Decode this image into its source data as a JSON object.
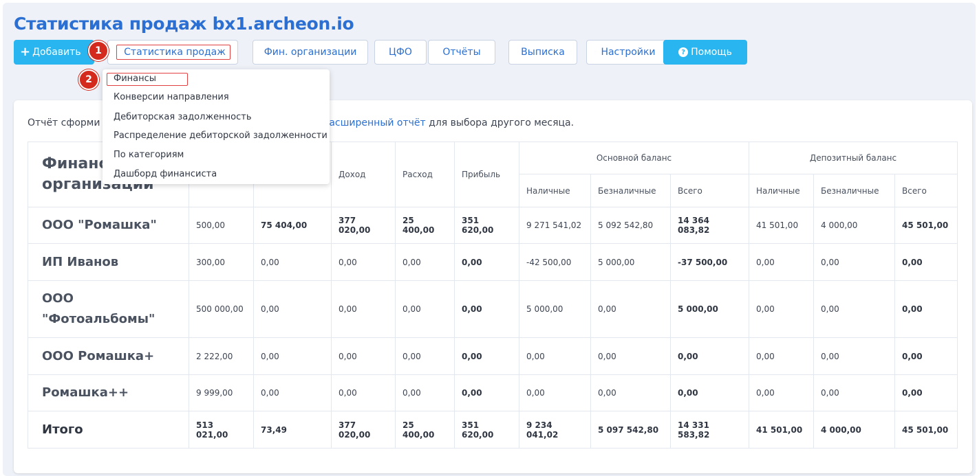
{
  "page": {
    "title": "Статистика продаж bx1.archeon.io"
  },
  "toolbar": {
    "add_label": "Добавить",
    "sales_stats_label": "Статистика продаж",
    "fin_orgs_label": "Фин. организации",
    "cfo_label": "ЦФО",
    "reports_label": "Отчёты",
    "statement_label": "Выписка",
    "settings_label": "Настройки",
    "help_label": "Помощь"
  },
  "markers": {
    "first": "1",
    "second": "2"
  },
  "dropdown": {
    "items": [
      "Финансы",
      "Конверсии направления",
      "Дебиторская задолженность",
      "Распределение дебиторской задолженности",
      "По категориям",
      "Дашборд финансиста"
    ]
  },
  "report": {
    "note_prefix": "Отчёт сформи",
    "note_link": "расширенный отчёт",
    "note_suffix": " для выбора другого месяца."
  },
  "table": {
    "first_header": "Финанс\nорганизации",
    "headers": {
      "income": "Доход",
      "expense": "Расход",
      "profit": "Прибыль",
      "main_balance": "Основной баланс",
      "deposit_balance": "Депозитный баланс",
      "cash": "Наличные",
      "non_cash": "Безналичные",
      "total": "Всего"
    },
    "rows": [
      {
        "name": "ООО \"Ромашка\"",
        "c1": "500,00",
        "c2": "75 404,00",
        "c3": "377 020,00",
        "c4": "25 400,00",
        "c5": "351 620,00",
        "c6": "9 271 541,02",
        "c7": "5 092 542,80",
        "c8": "14 364 083,82",
        "c9": "41 501,00",
        "c10": "4 000,00",
        "c11": "45 501,00"
      },
      {
        "name": "ИП Иванов",
        "c1": "300,00",
        "c2": "0,00",
        "c3": "0,00",
        "c4": "0,00",
        "c5": "0,00",
        "c6": "-42 500,00",
        "c7": "5 000,00",
        "c8": "-37 500,00",
        "c9": "0,00",
        "c10": "0,00",
        "c11": "0,00"
      },
      {
        "name": "ООО\n\"Фотоальбомы\"",
        "c1": "500 000,00",
        "c2": "0,00",
        "c3": "0,00",
        "c4": "0,00",
        "c5": "0,00",
        "c6": "5 000,00",
        "c7": "0,00",
        "c8": "5 000,00",
        "c9": "0,00",
        "c10": "0,00",
        "c11": "0,00"
      },
      {
        "name": "ООО Ромашка+",
        "c1": "2 222,00",
        "c2": "0,00",
        "c3": "0,00",
        "c4": "0,00",
        "c5": "0,00",
        "c6": "0,00",
        "c7": "0,00",
        "c8": "0,00",
        "c9": "0,00",
        "c10": "0,00",
        "c11": "0,00"
      },
      {
        "name": "Ромашка++",
        "c1": "9 999,00",
        "c2": "0,00",
        "c3": "0,00",
        "c4": "0,00",
        "c5": "0,00",
        "c6": "0,00",
        "c7": "0,00",
        "c8": "0,00",
        "c9": "0,00",
        "c10": "0,00",
        "c11": "0,00"
      }
    ],
    "total": {
      "name": "Итого",
      "c1": "513 021,00",
      "c2": "73,49",
      "c3": "377 020,00",
      "c4": "25 400,00",
      "c5": "351 620,00",
      "c6": "9 234 041,02",
      "c7": "5 097 542,80",
      "c8": "14 331 583,82",
      "c9": "41 501,00",
      "c10": "4 000,00",
      "c11": "45 501,00"
    }
  },
  "colors": {
    "accent": "#2a6fd1",
    "cyan": "#29b6f0",
    "marker": "#d32a1d",
    "highlight_border": "#e04040"
  }
}
